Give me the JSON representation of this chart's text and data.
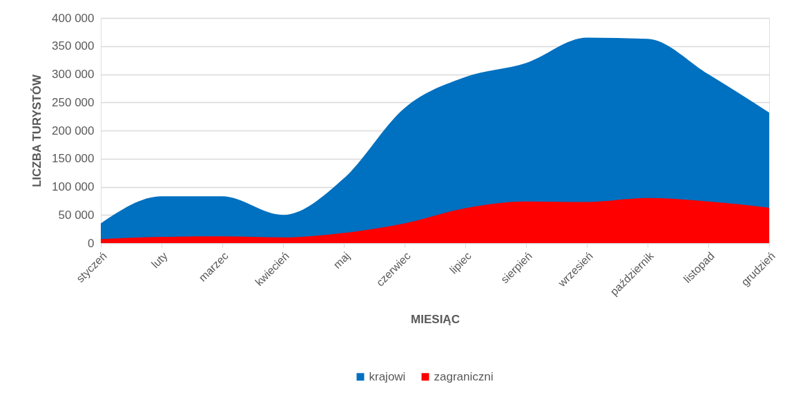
{
  "chart_data": {
    "type": "area",
    "xlabel": "MIESIĄC",
    "ylabel": "LICZBA TURYSTÓW",
    "categories": [
      "styczeń",
      "luty",
      "marzec",
      "kwiecień",
      "maj",
      "czerwiec",
      "lipiec",
      "sierpień",
      "wrzesień",
      "październik",
      "listopad",
      "grudzień"
    ],
    "series": [
      {
        "name": "krajowi",
        "color": "#0070c0",
        "values": [
          35000,
          83000,
          83000,
          50000,
          115000,
          240000,
          295000,
          320000,
          365000,
          363000,
          300000,
          232000
        ]
      },
      {
        "name": "zagraniczni",
        "color": "#ff0000",
        "values": [
          7000,
          11000,
          12000,
          10000,
          18000,
          35000,
          62000,
          74000,
          73000,
          80000,
          74000,
          63000
        ]
      }
    ],
    "ylim": [
      0,
      400000
    ],
    "yticks": [
      0,
      {
        "value": 50000,
        "label": "50 000"
      },
      {
        "value": 100000,
        "label": "100 000"
      },
      {
        "value": 150000,
        "label": "150 000"
      },
      {
        "value": 200000,
        "label": "200 000"
      },
      {
        "value": 250000,
        "label": "250 000"
      },
      {
        "value": 300000,
        "label": "300 000"
      },
      {
        "value": 350000,
        "label": "350 000"
      },
      {
        "value": 400000,
        "label": "400 000"
      }
    ],
    "grid": "y",
    "legend": "bottom"
  }
}
